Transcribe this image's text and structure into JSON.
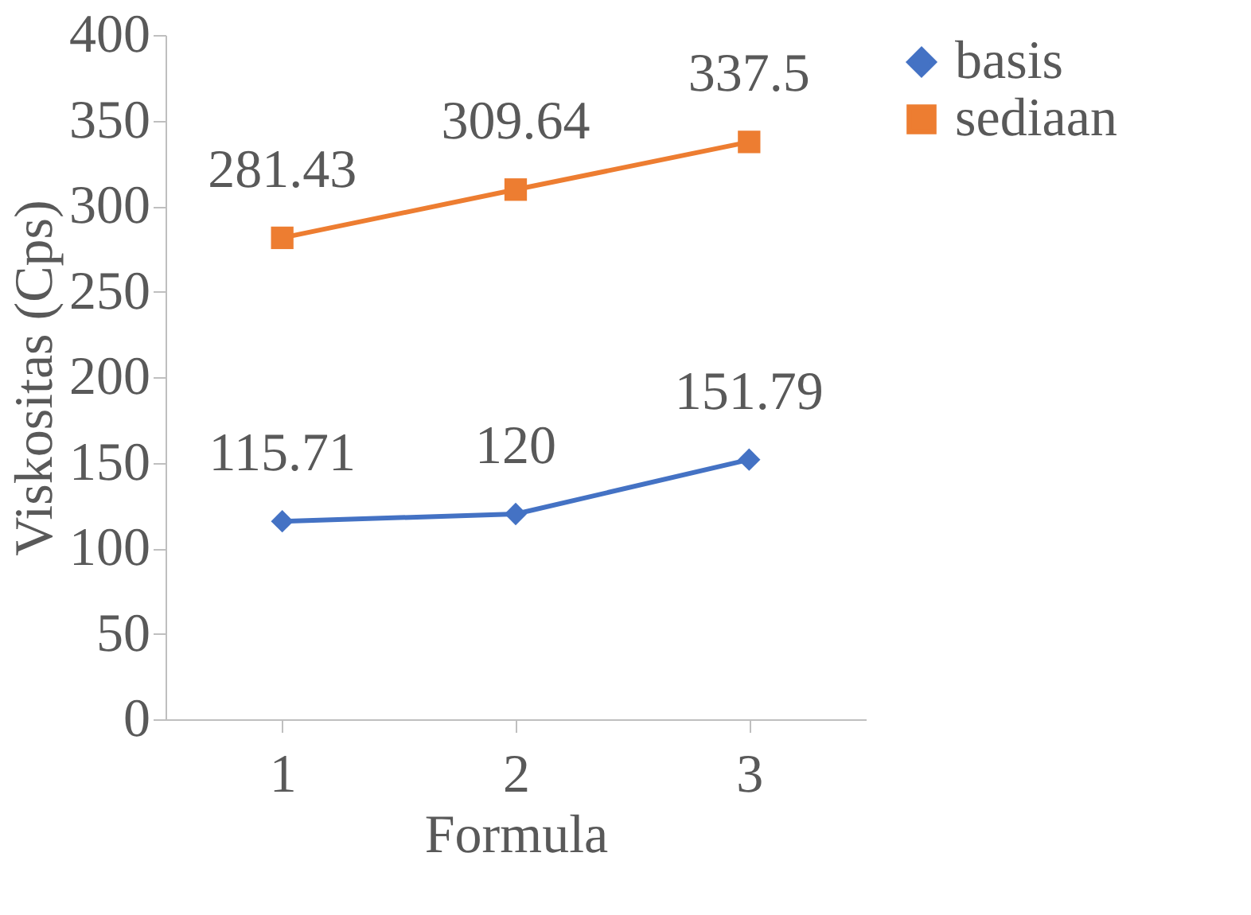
{
  "chart_data": {
    "type": "line",
    "xlabel": "Formula",
    "ylabel": "Viskositas (Cps)",
    "categories": [
      "1",
      "2",
      "3"
    ],
    "series": [
      {
        "name": "basis",
        "color": "#4472c4",
        "marker": "diamond",
        "values": [
          115.71,
          120,
          151.79
        ]
      },
      {
        "name": "sediaan",
        "color": "#ed7d31",
        "marker": "square",
        "values": [
          281.43,
          309.64,
          337.5
        ]
      }
    ],
    "ylim": [
      0,
      400
    ],
    "yticks": [
      0,
      50,
      100,
      150,
      200,
      250,
      300,
      350,
      400
    ],
    "data_labels": true,
    "grid": false,
    "legend": "right"
  }
}
